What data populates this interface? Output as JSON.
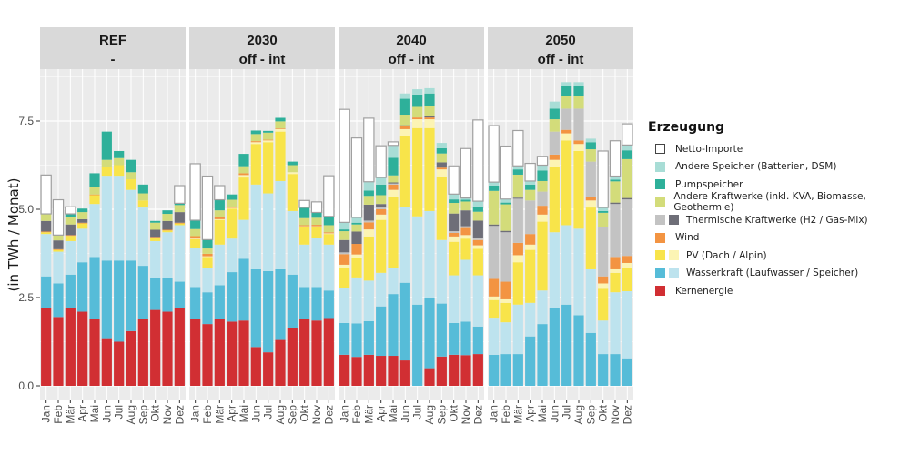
{
  "chart_data": {
    "type": "bar",
    "stacked": true,
    "ylabel": "(in TWh / Monat)",
    "xlabel": "",
    "ylim": [
      0,
      8.9
    ],
    "yticks": [
      "0.0",
      "2.5",
      "5.0",
      "7.5"
    ],
    "ytick_values": [
      0,
      2.5,
      5.0,
      7.5
    ],
    "grid": true,
    "legend_position": "right",
    "categories": [
      "Jan",
      "Feb",
      "Mär",
      "Apr",
      "Mai",
      "Jun",
      "Jul",
      "Aug",
      "Sep",
      "Okt",
      "Nov",
      "Dez"
    ],
    "segment_order": [
      "kern",
      "wasser_lauf",
      "wasser_speicher",
      "pv_dach",
      "pv_alpin",
      "wind",
      "therm_h2",
      "therm_gas",
      "andere_kw",
      "pump",
      "andere_speicher",
      "netto_importe"
    ],
    "colors": {
      "kern": "#d12f33",
      "wasser_lauf": "#56bcd8",
      "wasser_speicher": "#bde3ee",
      "pv_dach": "#f8e44a",
      "pv_alpin": "#fcf4b4",
      "wind": "#f39442",
      "therm_h2": "#c3c3c3",
      "therm_gas": "#6e6e78",
      "andere_kw": "#d3dc7a",
      "pump": "#2eb09a",
      "andere_speicher": "#a8ddd6",
      "netto_importe": "#ffffff"
    },
    "panels": [
      {
        "title": "REF",
        "subtitle": "-",
        "series": [
          {
            "name": "kern",
            "values": [
              2.2,
              1.95,
              2.2,
              2.1,
              1.9,
              1.35,
              1.25,
              1.55,
              1.9,
              2.15,
              2.1,
              2.2
            ]
          },
          {
            "name": "wasser_lauf",
            "values": [
              0.9,
              0.95,
              0.95,
              1.4,
              1.75,
              2.2,
              2.3,
              2.0,
              1.5,
              0.9,
              0.95,
              0.75
            ]
          },
          {
            "name": "wasser_speicher",
            "values": [
              1.2,
              0.9,
              0.95,
              0.95,
              1.5,
              2.4,
              2.4,
              2.0,
              1.65,
              1.05,
              1.3,
              1.6
            ]
          },
          {
            "name": "pv_dach",
            "values": [
              0.05,
              0.05,
              0.15,
              0.15,
              0.25,
              0.25,
              0.3,
              0.3,
              0.2,
              0.1,
              0.05,
              0.05
            ]
          },
          {
            "name": "pv_alpin",
            "values": [
              0,
              0,
              0,
              0,
              0,
              0,
              0,
              0,
              0,
              0,
              0,
              0
            ]
          },
          {
            "name": "wind",
            "values": [
              0.02,
              0.02,
              0.02,
              0.02,
              0.02,
              0.0,
              0.0,
              0.0,
              0.0,
              0.02,
              0.02,
              0.02
            ]
          },
          {
            "name": "therm_h2",
            "values": [
              0,
              0,
              0,
              0,
              0,
              0,
              0,
              0,
              0,
              0,
              0,
              0
            ]
          },
          {
            "name": "therm_gas",
            "values": [
              0.3,
              0.25,
              0.3,
              0.1,
              0.0,
              0.0,
              0.0,
              0.0,
              0.0,
              0.2,
              0.25,
              0.3
            ]
          },
          {
            "name": "andere_kw",
            "values": [
              0.2,
              0.15,
              0.2,
              0.2,
              0.2,
              0.2,
              0.2,
              0.2,
              0.2,
              0.2,
              0.2,
              0.2
            ]
          },
          {
            "name": "pump",
            "values": [
              0.0,
              0.0,
              0.1,
              0.1,
              0.4,
              0.8,
              0.2,
              0.35,
              0.25,
              0.05,
              0.1,
              0.05
            ]
          },
          {
            "name": "andere_speicher",
            "values": [
              0,
              0,
              0,
              0,
              0,
              0,
              0,
              0,
              0,
              0,
              0,
              0
            ]
          },
          {
            "name": "netto_importe",
            "values": [
              1.1,
              1.0,
              0.2,
              0.0,
              0.0,
              0.0,
              0.0,
              0.0,
              0.0,
              0.0,
              0.0,
              0.5
            ]
          }
        ]
      },
      {
        "title": "2030",
        "subtitle": "off - int",
        "series": [
          {
            "name": "kern",
            "values": [
              1.9,
              1.75,
              1.9,
              1.82,
              1.85,
              1.1,
              0.95,
              1.3,
              1.65,
              1.9,
              1.85,
              1.92
            ]
          },
          {
            "name": "wasser_lauf",
            "values": [
              0.9,
              0.9,
              0.95,
              1.4,
              1.75,
              2.2,
              2.3,
              2.0,
              1.5,
              0.9,
              0.95,
              0.78
            ]
          },
          {
            "name": "wasser_speicher",
            "values": [
              1.1,
              0.7,
              1.15,
              0.95,
              1.1,
              2.4,
              2.2,
              2.5,
              1.8,
              1.2,
              1.4,
              1.3
            ]
          },
          {
            "name": "pv_dach",
            "values": [
              0.25,
              0.3,
              0.7,
              0.85,
              1.2,
              1.15,
              1.45,
              1.4,
              1.05,
              0.5,
              0.3,
              0.3
            ]
          },
          {
            "name": "pv_alpin",
            "values": [
              0.02,
              0.02,
              0.02,
              0.02,
              0.07,
              0.05,
              0.05,
              0.07,
              0.05,
              0.02,
              0.02,
              0.02
            ]
          },
          {
            "name": "wind",
            "values": [
              0.07,
              0.07,
              0.05,
              0.03,
              0.05,
              0.03,
              0.02,
              0.02,
              0.0,
              0.03,
              0.04,
              0.03
            ]
          },
          {
            "name": "therm_h2",
            "values": [
              0,
              0,
              0,
              0,
              0,
              0,
              0,
              0,
              0,
              0,
              0,
              0
            ]
          },
          {
            "name": "therm_gas",
            "values": [
              0,
              0,
              0,
              0,
              0,
              0,
              0,
              0,
              0,
              0,
              0,
              0
            ]
          },
          {
            "name": "andere_kw",
            "values": [
              0.2,
              0.15,
              0.2,
              0.2,
              0.2,
              0.2,
              0.2,
              0.2,
              0.2,
              0.2,
              0.2,
              0.2
            ]
          },
          {
            "name": "pump",
            "values": [
              0.25,
              0.25,
              0.3,
              0.15,
              0.35,
              0.1,
              0.05,
              0.1,
              0.1,
              0.3,
              0.15,
              0.25
            ]
          },
          {
            "name": "andere_speicher",
            "values": [
              0,
              0,
              0,
              0,
              0,
              0,
              0,
              0,
              0,
              0,
              0,
              0
            ]
          },
          {
            "name": "netto_importe",
            "values": [
              1.6,
              1.8,
              0.4,
              0.0,
              0.0,
              0.0,
              0.0,
              0.0,
              0.0,
              0.2,
              0.3,
              1.15
            ]
          }
        ]
      },
      {
        "title": "2040",
        "subtitle": "off - int",
        "series": [
          {
            "name": "kern",
            "values": [
              0.88,
              0.82,
              0.88,
              0.85,
              0.85,
              0.72,
              0.0,
              0.5,
              0.83,
              0.88,
              0.87,
              0.9
            ]
          },
          {
            "name": "wasser_lauf",
            "values": [
              0.9,
              0.95,
              0.95,
              1.4,
              1.75,
              2.2,
              2.3,
              2.0,
              1.5,
              0.9,
              0.95,
              0.78
            ]
          },
          {
            "name": "wasser_speicher",
            "values": [
              1.0,
              1.3,
              1.15,
              0.95,
              0.75,
              2.15,
              2.5,
              2.45,
              1.8,
              1.35,
              1.75,
              1.45
            ]
          },
          {
            "name": "pv_dach",
            "values": [
              0.55,
              0.55,
              1.25,
              1.5,
              2.0,
              2.0,
              2.5,
              2.35,
              1.8,
              0.95,
              0.6,
              0.75
            ]
          },
          {
            "name": "pv_alpin",
            "values": [
              0.1,
              0.1,
              0.2,
              0.15,
              0.2,
              0.2,
              0.25,
              0.25,
              0.2,
              0.15,
              0.1,
              0.1
            ]
          },
          {
            "name": "wind",
            "values": [
              0.3,
              0.3,
              0.2,
              0.15,
              0.15,
              0.08,
              0.05,
              0.05,
              0.05,
              0.1,
              0.2,
              0.15
            ]
          },
          {
            "name": "therm_h2",
            "values": [
              0.05,
              0.0,
              0.05,
              0.05,
              0.03,
              0.0,
              0.0,
              0.0,
              0.0,
              0.05,
              0.05,
              0.05
            ]
          },
          {
            "name": "therm_gas",
            "values": [
              0.35,
              0.35,
              0.45,
              0.1,
              0.03,
              0.03,
              0.0,
              0.03,
              0.15,
              0.5,
              0.45,
              0.5
            ]
          },
          {
            "name": "andere_kw",
            "values": [
              0.25,
              0.2,
              0.25,
              0.25,
              0.2,
              0.3,
              0.3,
              0.3,
              0.25,
              0.3,
              0.25,
              0.25
            ]
          },
          {
            "name": "pump",
            "values": [
              0.05,
              0.05,
              0.15,
              0.3,
              0.5,
              0.45,
              0.35,
              0.35,
              0.15,
              0.1,
              0.05,
              0.15
            ]
          },
          {
            "name": "andere_speicher",
            "values": [
              0.2,
              0.15,
              0.25,
              0.2,
              0.35,
              0.15,
              0.15,
              0.15,
              0.15,
              0.15,
              0.05,
              0.15
            ]
          },
          {
            "name": "netto_importe",
            "values": [
              3.2,
              2.25,
              1.8,
              0.9,
              0.1,
              0.0,
              0.0,
              0.0,
              0.0,
              0.8,
              1.4,
              2.3
            ]
          }
        ]
      },
      {
        "title": "2050",
        "subtitle": "off - int",
        "series": [
          {
            "name": "kern",
            "values": [
              0,
              0,
              0,
              0,
              0,
              0,
              0,
              0,
              0,
              0,
              0,
              0
            ]
          },
          {
            "name": "wasser_lauf",
            "values": [
              0.88,
              0.9,
              0.9,
              1.4,
              1.75,
              2.2,
              2.3,
              2.0,
              1.5,
              0.9,
              0.9,
              0.78
            ]
          },
          {
            "name": "wasser_speicher",
            "values": [
              1.05,
              0.9,
              1.4,
              0.95,
              0.95,
              2.15,
              2.25,
              2.45,
              1.8,
              0.95,
              1.75,
              1.9
            ]
          },
          {
            "name": "pv_dach",
            "values": [
              0.5,
              0.55,
              1.2,
              1.5,
              1.95,
              1.85,
              2.4,
              2.2,
              1.75,
              0.9,
              0.55,
              0.65
            ]
          },
          {
            "name": "pv_alpin",
            "values": [
              0.1,
              0.1,
              0.2,
              0.15,
              0.2,
              0.2,
              0.2,
              0.2,
              0.2,
              0.15,
              0.1,
              0.15
            ]
          },
          {
            "name": "wind",
            "values": [
              0.5,
              0.5,
              0.35,
              0.3,
              0.25,
              0.15,
              0.1,
              0.1,
              0.1,
              0.2,
              0.35,
              0.2
            ]
          },
          {
            "name": "therm_h2",
            "values": [
              1.5,
              1.4,
              1.25,
              0.95,
              0.4,
              0.65,
              0.6,
              0.9,
              1.0,
              1.4,
              1.5,
              1.6
            ]
          },
          {
            "name": "therm_gas",
            "values": [
              0.04,
              0.04,
              0.03,
              0.0,
              0.0,
              0.0,
              0.0,
              0.0,
              0.0,
              0.0,
              0.04,
              0.04
            ]
          },
          {
            "name": "andere_kw",
            "values": [
              0.95,
              0.75,
              0.65,
              0.3,
              0.3,
              0.35,
              0.35,
              0.35,
              0.35,
              0.4,
              0.6,
              1.1
            ]
          },
          {
            "name": "pump",
            "values": [
              0.15,
              0.05,
              0.15,
              0.15,
              0.3,
              0.3,
              0.3,
              0.3,
              0.2,
              0.05,
              0.05,
              0.25
            ]
          },
          {
            "name": "andere_speicher",
            "values": [
              0.1,
              0.1,
              0.1,
              0.1,
              0.15,
              0.2,
              0.1,
              0.1,
              0.1,
              0.1,
              0.1,
              0.15
            ]
          },
          {
            "name": "netto_importe",
            "values": [
              1.6,
              1.5,
              1.0,
              0.5,
              0.25,
              0.0,
              0.0,
              0.0,
              0.0,
              1.6,
              1.0,
              0.6
            ]
          }
        ]
      }
    ],
    "legend": {
      "title": "Erzeugung",
      "entries": [
        {
          "label": "Netto-Importe",
          "keys": [
            "netto_importe"
          ]
        },
        {
          "label": "Andere Speicher (Batterien, DSM)",
          "keys": [
            "andere_speicher"
          ]
        },
        {
          "label": "Pumpspeicher",
          "keys": [
            "pump"
          ]
        },
        {
          "label": "Andere Kraftwerke (inkl. KVA, Biomasse, Geothermie)",
          "keys": [
            "andere_kw"
          ]
        },
        {
          "label": "Thermische Kraftwerke (H2 / Gas-Mix)",
          "keys": [
            "therm_h2",
            "therm_gas"
          ]
        },
        {
          "label": "Wind",
          "keys": [
            "wind"
          ]
        },
        {
          "label": "PV (Dach / Alpin)",
          "keys": [
            "pv_dach",
            "pv_alpin"
          ]
        },
        {
          "label": "Wasserkraft (Laufwasser / Speicher)",
          "keys": [
            "wasser_lauf",
            "wasser_speicher"
          ]
        },
        {
          "label": "Kernenergie",
          "keys": [
            "kern"
          ]
        }
      ]
    }
  }
}
